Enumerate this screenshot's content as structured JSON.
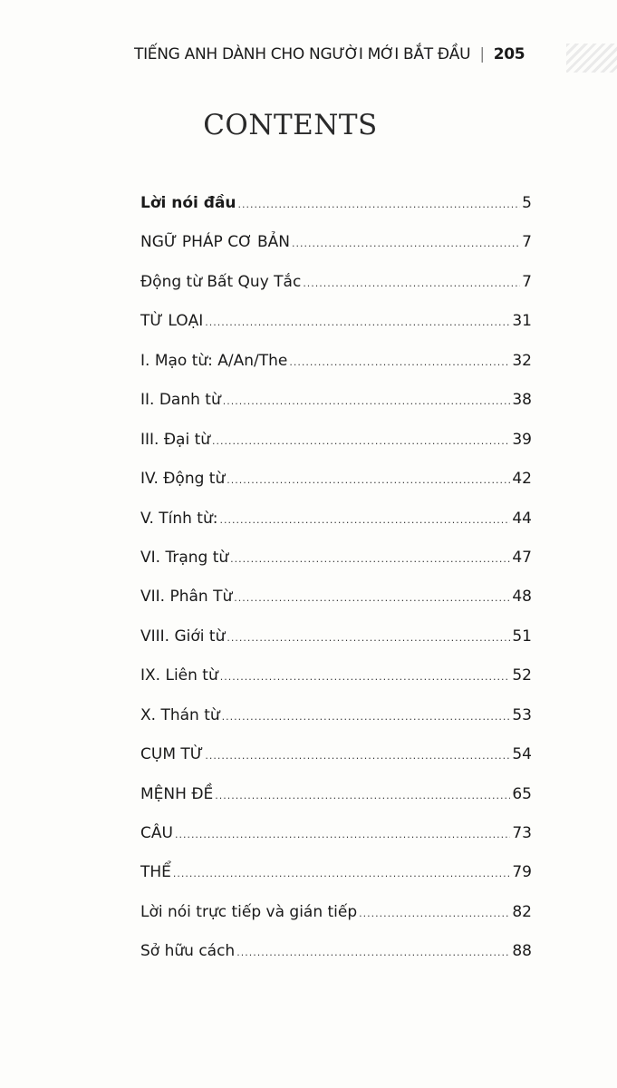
{
  "header": {
    "running_title": "TIẾNG ANH DÀNH CHO NGƯỜI MỚI BẮT ĐẦU",
    "separator": "|",
    "page_number": "205"
  },
  "title": "CONTENTS",
  "toc": [
    {
      "label": "Lời nói đầu",
      "page": "5",
      "bold": true
    },
    {
      "label": "NGỮ PHÁP CƠ BẢN",
      "page": "7"
    },
    {
      "label": "Động từ Bất Quy Tắc",
      "page": "7"
    },
    {
      "label": "TỪ LOẠI",
      "page": "31"
    },
    {
      "label": "I. Mạo từ: A/An/The",
      "page": "32"
    },
    {
      "label": "II. Danh từ",
      "page": "38"
    },
    {
      "label": "III. Đại từ",
      "page": "39"
    },
    {
      "label": "IV. Động từ",
      "page": "42"
    },
    {
      "label": "V. Tính từ:",
      "page": "44"
    },
    {
      "label": "VI. Trạng từ",
      "page": "47"
    },
    {
      "label": "VII. Phân Từ",
      "page": "48"
    },
    {
      "label": "VIII. Giới từ",
      "page": "51"
    },
    {
      "label": "IX. Liên từ",
      "page": "52"
    },
    {
      "label": "X. Thán từ",
      "page": "53"
    },
    {
      "label": "CỤM TỪ",
      "page": "54"
    },
    {
      "label": "MỆNH ĐỀ",
      "page": "65"
    },
    {
      "label": "CÂU",
      "page": "73"
    },
    {
      "label": "THỂ",
      "page": "79"
    },
    {
      "label": "Lời nói trực tiếp và gián tiếp",
      "page": "82"
    },
    {
      "label": "Sở hữu cách",
      "page": "88"
    }
  ]
}
